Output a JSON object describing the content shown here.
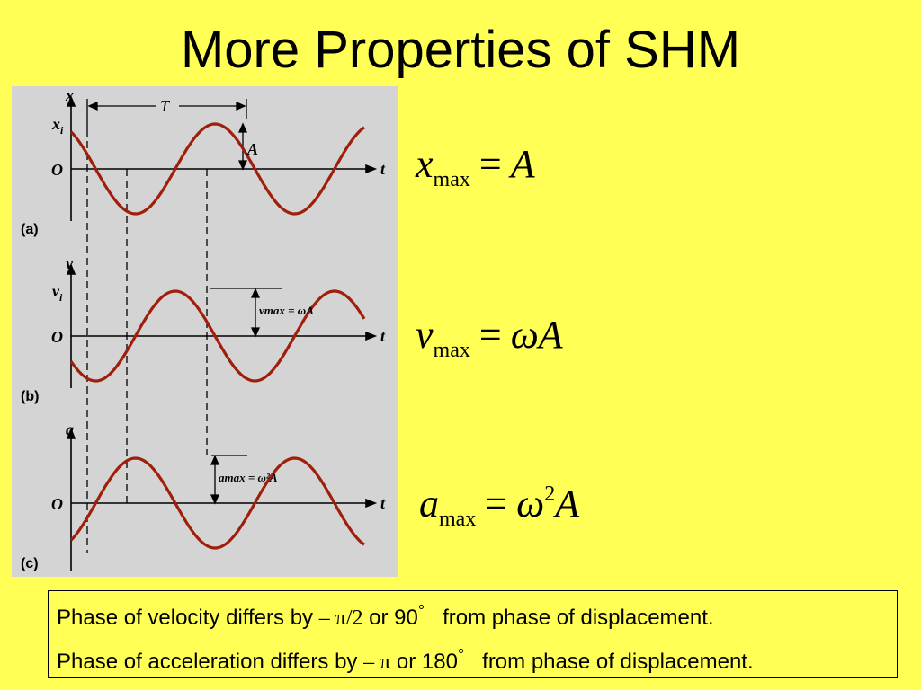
{
  "slide": {
    "title": "More Properties of SHM"
  },
  "figure": {
    "colors": {
      "wave": "#a01e0c",
      "axis": "#000000",
      "background": "#d4d4d4"
    },
    "panels": [
      {
        "id": "a",
        "tag": "(a)",
        "y_axis": "x",
        "y_initial": "x",
        "y_initial_sub": "i",
        "origin": "O",
        "t_axis": "t",
        "period_label": "T",
        "amplitude_label": "A"
      },
      {
        "id": "b",
        "tag": "(b)",
        "y_axis": "v",
        "y_initial": "v",
        "y_initial_sub": "i",
        "origin": "O",
        "t_axis": "t",
        "max_label": "vmax = ωA"
      },
      {
        "id": "c",
        "tag": "(c)",
        "y_axis": "a",
        "origin": "O",
        "t_axis": "t",
        "max_label": "amax = ω²A"
      }
    ]
  },
  "equations": {
    "x": {
      "var": "x",
      "sub": "max",
      "eq": "=",
      "rhs": "A"
    },
    "v": {
      "var": "v",
      "sub": "max",
      "eq": "=",
      "rhs": "ωA"
    },
    "a": {
      "var": "a",
      "sub": "max",
      "eq": "=",
      "rhs_pre": "ω",
      "sup": "2",
      "rhs_post": "A"
    }
  },
  "note": {
    "line1": {
      "pre": "Phase of velocity differs by ",
      "phase": "– π/2",
      "mid": " or 90",
      "deg": "°",
      "post": "   from phase of displacement."
    },
    "line2": {
      "pre": "Phase of acceleration differs by ",
      "phase": "– π",
      "mid": " or 180",
      "deg": "°",
      "post": "   from phase of displacement."
    }
  }
}
